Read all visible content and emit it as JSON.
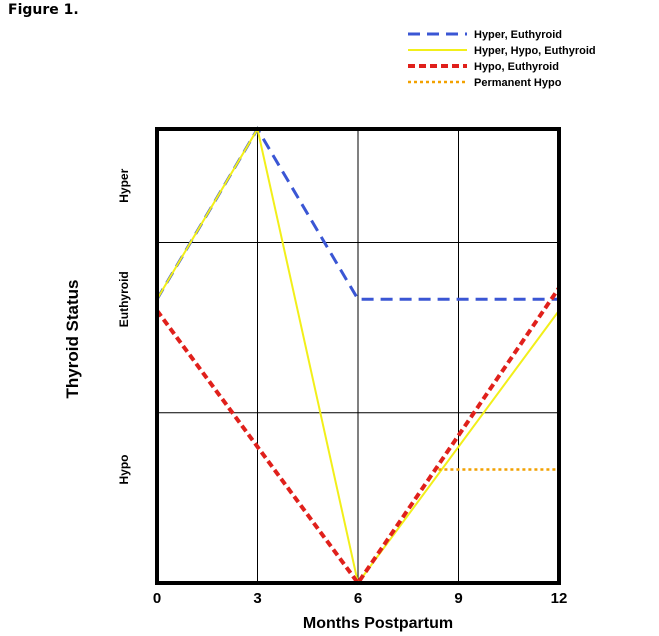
{
  "figure_label": "Figure 1.",
  "chart_data": {
    "type": "line",
    "xlabel": "Months Postpartum",
    "ylabel": "Thyroid Status",
    "xlim": [
      0,
      12
    ],
    "ylim": [
      -2.5,
      1.5
    ],
    "x_ticks": [
      0,
      3,
      6,
      9,
      12
    ],
    "x_tick_labels": [
      "0",
      "3",
      "6",
      "9",
      "12"
    ],
    "y_gridlines": [
      -1,
      0.5
    ],
    "y_categories": [
      {
        "label": "Hyper",
        "y": 1
      },
      {
        "label": "Euthyroid",
        "y": 0
      },
      {
        "label": "Hypo",
        "y": -1.5
      }
    ],
    "legend_position": "top-right",
    "series": [
      {
        "name": "Hyper, Euthyroid",
        "color": "#3a56d4",
        "style": "dashed",
        "x": [
          0,
          3,
          6,
          12
        ],
        "y": [
          0,
          1.5,
          0,
          0
        ]
      },
      {
        "name": "Hyper, Hypo, Euthyroid",
        "color": "#f2ef1a",
        "style": "solid",
        "x": [
          0,
          3,
          6,
          12
        ],
        "y": [
          0,
          1.5,
          -2.5,
          -0.1
        ]
      },
      {
        "name": "Hypo, Euthyroid",
        "color": "#e0201b",
        "style": "dashed-bold",
        "x": [
          0,
          6,
          12
        ],
        "y": [
          -0.1,
          -2.5,
          0.1
        ]
      },
      {
        "name": "Permanent Hypo",
        "color": "#f2a100",
        "style": "dotted",
        "x": [
          8.4,
          12
        ],
        "y": [
          -1.5,
          -1.5
        ]
      }
    ]
  }
}
